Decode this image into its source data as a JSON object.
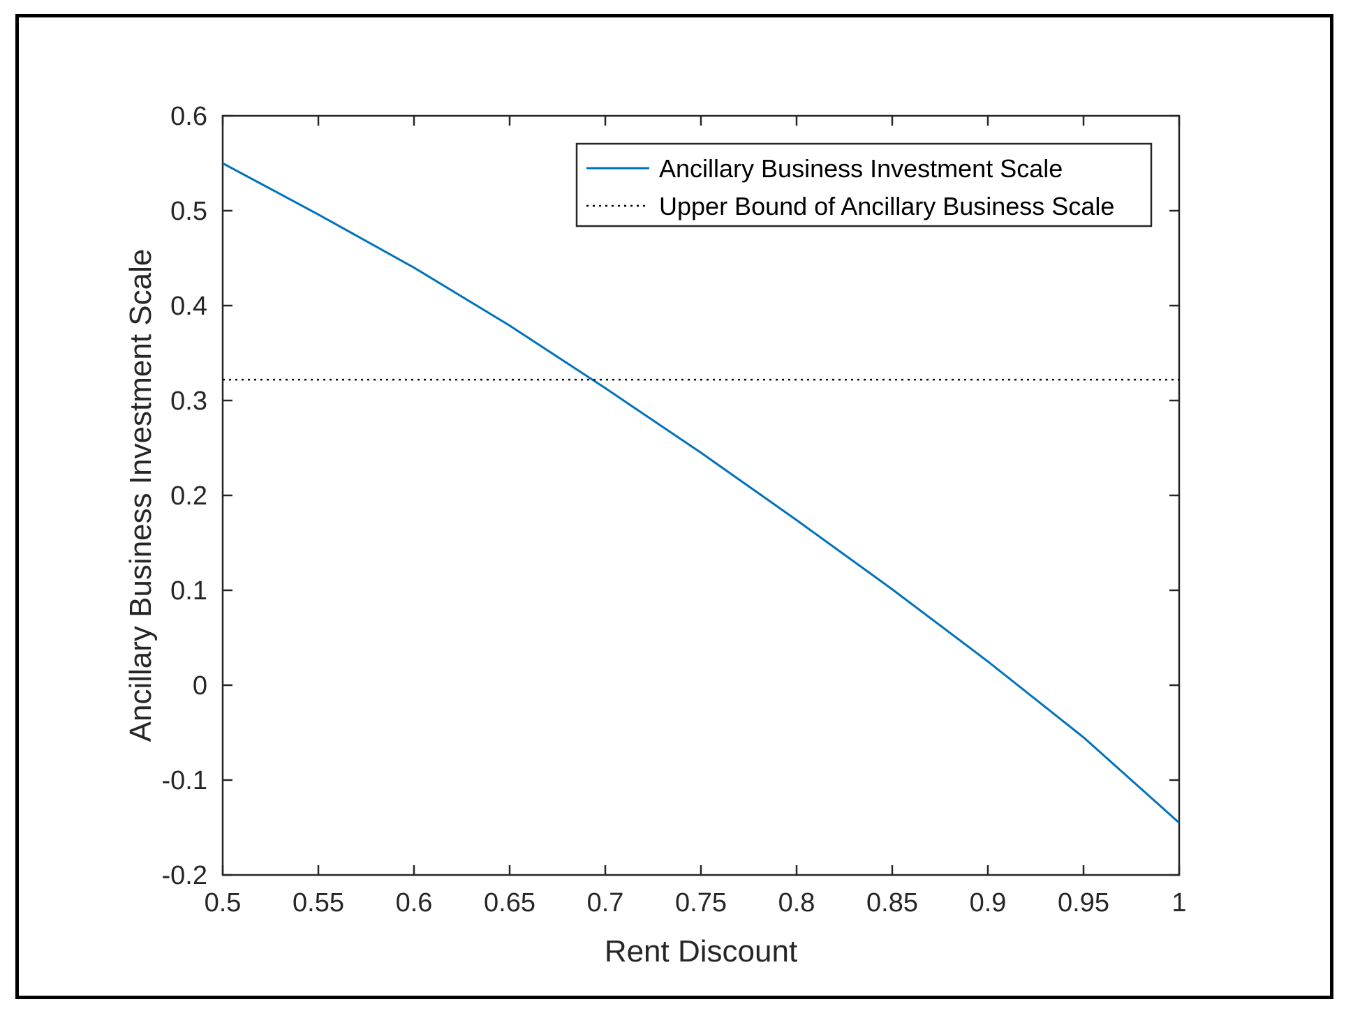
{
  "chart_data": {
    "type": "line",
    "title": "",
    "xlabel": "Rent Discount",
    "ylabel": "Ancillary Business Investment Scale",
    "xlim": [
      0.5,
      1
    ],
    "ylim": [
      -0.2,
      0.6
    ],
    "xticks": [
      "0.5",
      "0.55",
      "0.6",
      "0.65",
      "0.7",
      "0.75",
      "0.8",
      "0.85",
      "0.9",
      "0.95",
      "1"
    ],
    "yticks": [
      "-0.2",
      "-0.1",
      "0",
      "0.1",
      "0.2",
      "0.3",
      "0.4",
      "0.5",
      "0.6"
    ],
    "grid": false,
    "legend_position": "top-right",
    "series": [
      {
        "name": "Ancillary Business Investment Scale",
        "style": "solid",
        "color": "#0072BD",
        "x": [
          0.5,
          0.55,
          0.6,
          0.65,
          0.7,
          0.75,
          0.8,
          0.85,
          0.9,
          0.95,
          1.0
        ],
        "y": [
          0.55,
          0.496,
          0.44,
          0.379,
          0.313,
          0.245,
          0.174,
          0.101,
          0.025,
          -0.055,
          -0.145
        ]
      },
      {
        "name": "Upper Bound of Ancillary Business Scale",
        "style": "dotted",
        "color": "#000000",
        "x": [
          0.5,
          1.0
        ],
        "y": [
          0.322,
          0.322
        ]
      }
    ]
  }
}
